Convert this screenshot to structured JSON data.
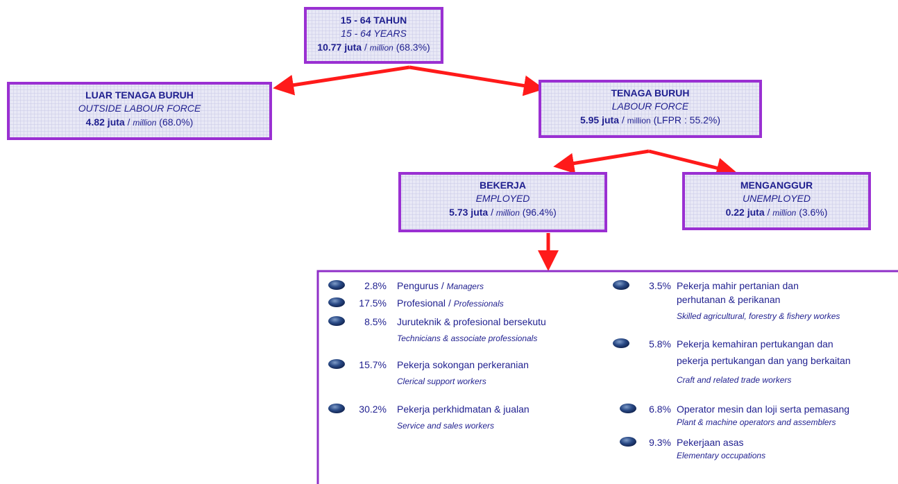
{
  "nodes": [
    {
      "title": "15 - 64 TAHUN",
      "subtitle": "15 - 64 YEARS",
      "value": "10.77 juta",
      "sep": "/",
      "unit": "million",
      "share": "(68.3%)"
    },
    {
      "title": "LUAR TENAGA BURUH",
      "subtitle": "OUTSIDE LABOUR FORCE",
      "value": "4.82 juta",
      "sep": "/",
      "unit": "million",
      "share": "(68.0%)"
    },
    {
      "title": "TENAGA BURUH",
      "subtitle": "LABOUR FORCE",
      "value": "5.95 juta",
      "sep": "/",
      "unit": "million",
      "share": "(LFPR : 55.2%)"
    },
    {
      "title": "BEKERJA",
      "subtitle": "EMPLOYED",
      "value": "5.73 juta",
      "sep": "/",
      "unit": "million",
      "share": "(96.4%)"
    },
    {
      "title": "MENGANGGUR",
      "subtitle": "UNEMPLOYED",
      "value": "0.22 juta",
      "sep": "/",
      "unit": "million",
      "share": "(3.6%)"
    }
  ],
  "occupations": {
    "left": [
      {
        "pct": "2.8%",
        "name": [
          "Pengurus"
        ],
        "sep": "/",
        "english": "Managers"
      },
      {
        "pct": "17.5%",
        "name": [
          "Profesional"
        ],
        "sep": "/",
        "english": "Professionals"
      },
      {
        "pct": "8.5%",
        "name": [
          "Juruteknik & profesional bersekutu"
        ],
        "english": "Technicians & associate professionals"
      },
      {
        "pct": "15.7%",
        "name": [
          "Pekerja sokongan perkeranian"
        ],
        "english": "Clerical support workers"
      },
      {
        "pct": "30.2%",
        "name": [
          "Pekerja perkhidmatan & jualan"
        ],
        "english": "Service and sales workers"
      }
    ],
    "right": [
      {
        "pct": "3.5%",
        "name": [
          "Pekerja mahir pertanian dan",
          "perhutanan &  perikanan"
        ],
        "english": "Skilled agricultural, forestry & fishery workes"
      },
      {
        "pct": "5.8%",
        "name": [
          "Pekerja kemahiran pertukangan dan",
          "pekerja pertukangan dan yang berkaitan"
        ],
        "english": "Craft and related trade workers"
      },
      {
        "pct": "6.8%",
        "name": [
          "Operator mesin  dan  loji  serta pemasang"
        ],
        "english": "Plant & machine operators and assemblers"
      },
      {
        "pct": "9.3%",
        "name": [
          "Pekerjaan asas"
        ],
        "english": "Elementary occupations"
      }
    ]
  }
}
